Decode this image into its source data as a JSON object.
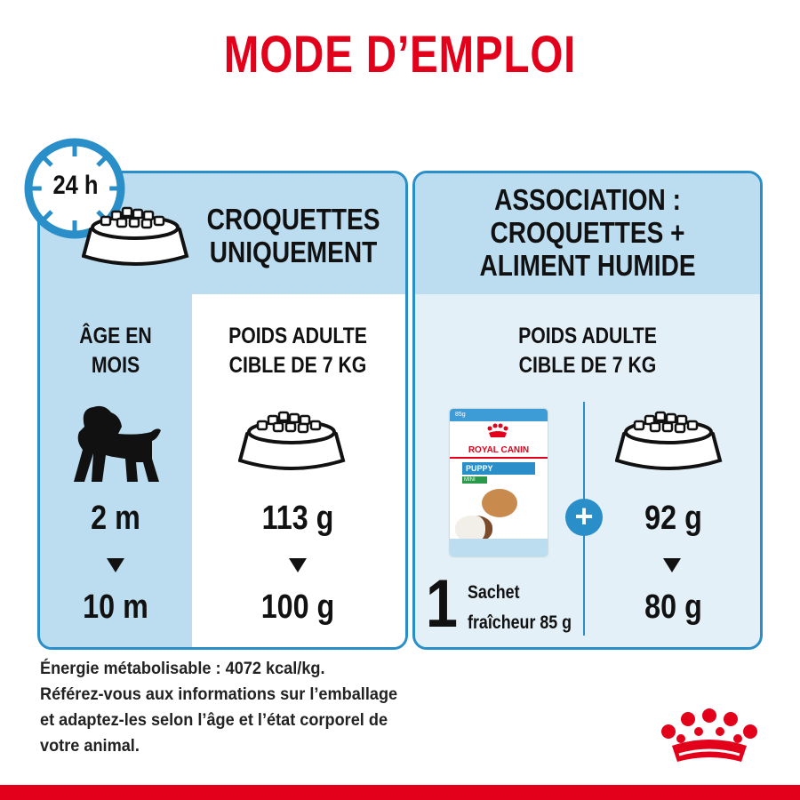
{
  "title": "MODE D’EMPLOI",
  "colors": {
    "red": "#e2001a",
    "blue": "#2a8fc8",
    "panel_blue": "#bcdcf0",
    "light_blue": "#e4f0f8"
  },
  "left": {
    "clock": "24 h",
    "heading": [
      "CROQUETTES",
      "UNIQUEMENT"
    ],
    "age_label": [
      "ÂGE EN",
      "MOIS"
    ],
    "weight_label": [
      "POIDS ADULTE",
      "CIBLE DE 7 KG"
    ],
    "age_from": "2 m",
    "age_to": "10 m",
    "amount_from": "113 g",
    "amount_to": "100 g"
  },
  "right": {
    "heading": [
      "ASSOCIATION :",
      "CROQUETTES +",
      "ALIMENT HUMIDE"
    ],
    "weight_label": [
      "POIDS ADULTE",
      "CIBLE DE 7 KG"
    ],
    "pouch": {
      "weight": "85g",
      "brand": "ROYAL CANIN",
      "name": "PUPPY",
      "range": "MINI"
    },
    "sachet_count": "1",
    "sachet_label": [
      "Sachet",
      "fraîcheur 85 g"
    ],
    "amount_from": "92 g",
    "amount_to": "80 g"
  },
  "footer": [
    "Énergie métabolisable : 4072 kcal/kg.",
    "Référez-vous aux informations sur l’emballage",
    "et adaptez-les selon l’âge et l’état corporel de",
    "votre animal."
  ]
}
